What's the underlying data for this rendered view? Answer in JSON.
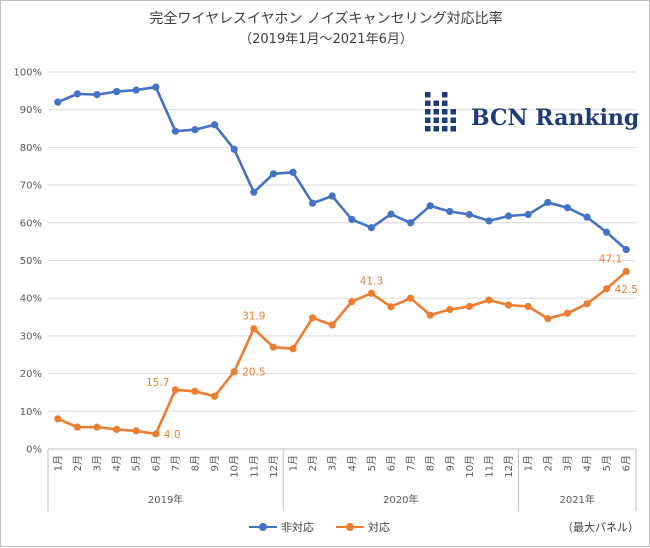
{
  "chart_data": {
    "type": "line",
    "title": "完全ワイヤレスイヤホン ノイズキャンセリング対応比率",
    "subtitle": "（2019年1月～2021年6月）",
    "note": "（最大パネル）",
    "logo_text": "BCN Ranking",
    "y_ticks": [
      "0%",
      "10%",
      "20%",
      "30%",
      "40%",
      "50%",
      "60%",
      "70%",
      "80%",
      "90%",
      "100%"
    ],
    "ylim": [
      0,
      100
    ],
    "categories": [
      "1月",
      "2月",
      "3月",
      "4月",
      "5月",
      "6月",
      "7月",
      "8月",
      "9月",
      "10月",
      "11月",
      "12月",
      "1月",
      "2月",
      "3月",
      "4月",
      "5月",
      "6月",
      "7月",
      "8月",
      "9月",
      "10月",
      "11月",
      "12月",
      "1月",
      "2月",
      "3月",
      "4月",
      "5月",
      "6月"
    ],
    "year_groups": [
      {
        "label": "2019年",
        "count": 12
      },
      {
        "label": "2020年",
        "count": 12
      },
      {
        "label": "2021年",
        "count": 6
      }
    ],
    "series": [
      {
        "name": "非対応",
        "color": "#4472C4",
        "values": [
          92.0,
          94.2,
          94.0,
          94.8,
          95.2,
          96.0,
          84.3,
          84.7,
          86.0,
          79.5,
          68.1,
          73.0,
          73.4,
          65.2,
          67.1,
          60.9,
          58.7,
          62.3,
          60.0,
          64.5,
          63.0,
          62.2,
          60.5,
          61.8,
          62.2,
          65.4,
          64.0,
          61.5,
          57.5,
          52.9
        ]
      },
      {
        "name": "対応",
        "color": "#ED7D31",
        "values": [
          8.0,
          5.8,
          5.8,
          5.2,
          4.8,
          4.0,
          15.7,
          15.3,
          14.0,
          20.5,
          31.9,
          27.0,
          26.6,
          34.8,
          32.9,
          39.1,
          41.3,
          37.7,
          40.0,
          35.5,
          37.0,
          37.8,
          39.5,
          38.2,
          37.8,
          34.6,
          36.0,
          38.5,
          42.5,
          47.1
        ]
      }
    ],
    "data_labels": [
      {
        "series": 1,
        "index": 5,
        "text": "4.0",
        "pos": "right"
      },
      {
        "series": 1,
        "index": 6,
        "text": "15.7",
        "pos": "left"
      },
      {
        "series": 1,
        "index": 9,
        "text": "20.5",
        "pos": "right"
      },
      {
        "series": 1,
        "index": 10,
        "text": "31.9",
        "pos": "above"
      },
      {
        "series": 1,
        "index": 16,
        "text": "41.3",
        "pos": "above"
      },
      {
        "series": 1,
        "index": 28,
        "text": "42.5",
        "pos": "right"
      },
      {
        "series": 1,
        "index": 29,
        "text": "47.1",
        "pos": "above-left"
      }
    ],
    "grid": true,
    "legend": "bottom"
  }
}
